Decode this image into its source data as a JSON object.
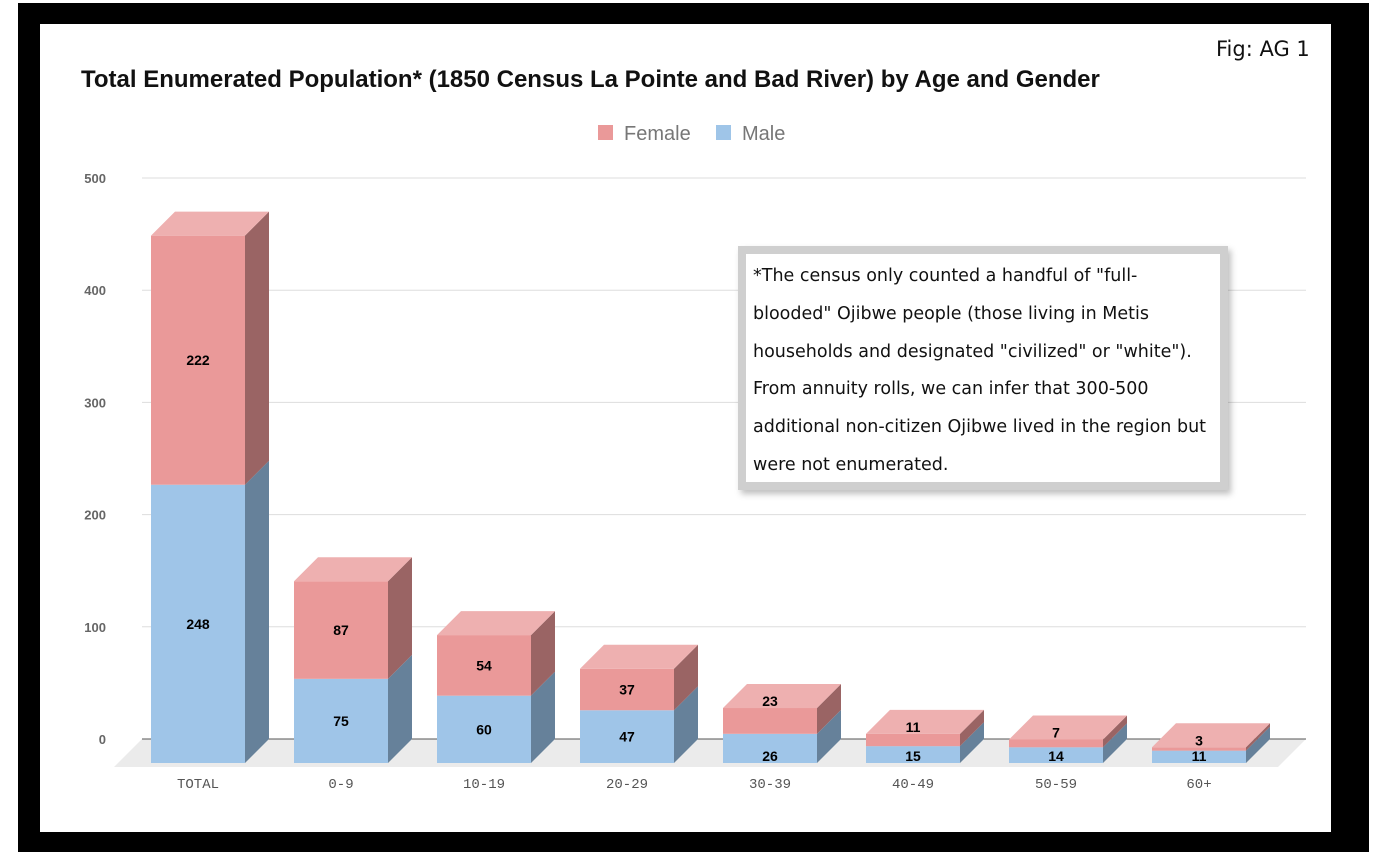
{
  "figure_label": "Fig: AG 1",
  "note": "*The census only counted a handful of \"full-blooded\" Ojibwe people (those living in Metis households and designated \"civilized\" or \"white\"). From annuity rolls, we can infer that 300-500 additional non-citizen Ojibwe lived in the region but were not enumerated.",
  "colors": {
    "female": "#ea9999",
    "female_top": "#eeb0b0",
    "female_side": "#9a6464",
    "male": "#9fc5e8",
    "male_top": "#b7d4ef",
    "male_side": "#66819a",
    "grid": "#dddddd",
    "floor": "#ebebeb"
  },
  "chart_data": {
    "type": "bar",
    "stacked": true,
    "three_d": true,
    "title": "Total Enumerated Population* (1850 Census La Pointe and Bad River) by Age and Gender",
    "xlabel": "",
    "ylabel": "",
    "categories": [
      "TOTAL",
      "0-9",
      "10-19",
      "20-29",
      "30-39",
      "40-49",
      "50-59",
      "60+"
    ],
    "series": [
      {
        "name": "Male",
        "values": [
          248,
          75,
          60,
          47,
          26,
          15,
          14,
          11
        ]
      },
      {
        "name": "Female",
        "values": [
          222,
          87,
          54,
          37,
          23,
          11,
          7,
          3
        ]
      }
    ],
    "yticks": [
      0,
      100,
      200,
      300,
      400,
      500
    ],
    "ylim": [
      0,
      500
    ],
    "legend": [
      "Female",
      "Male"
    ],
    "legend_position": "top-center",
    "grid": true
  }
}
